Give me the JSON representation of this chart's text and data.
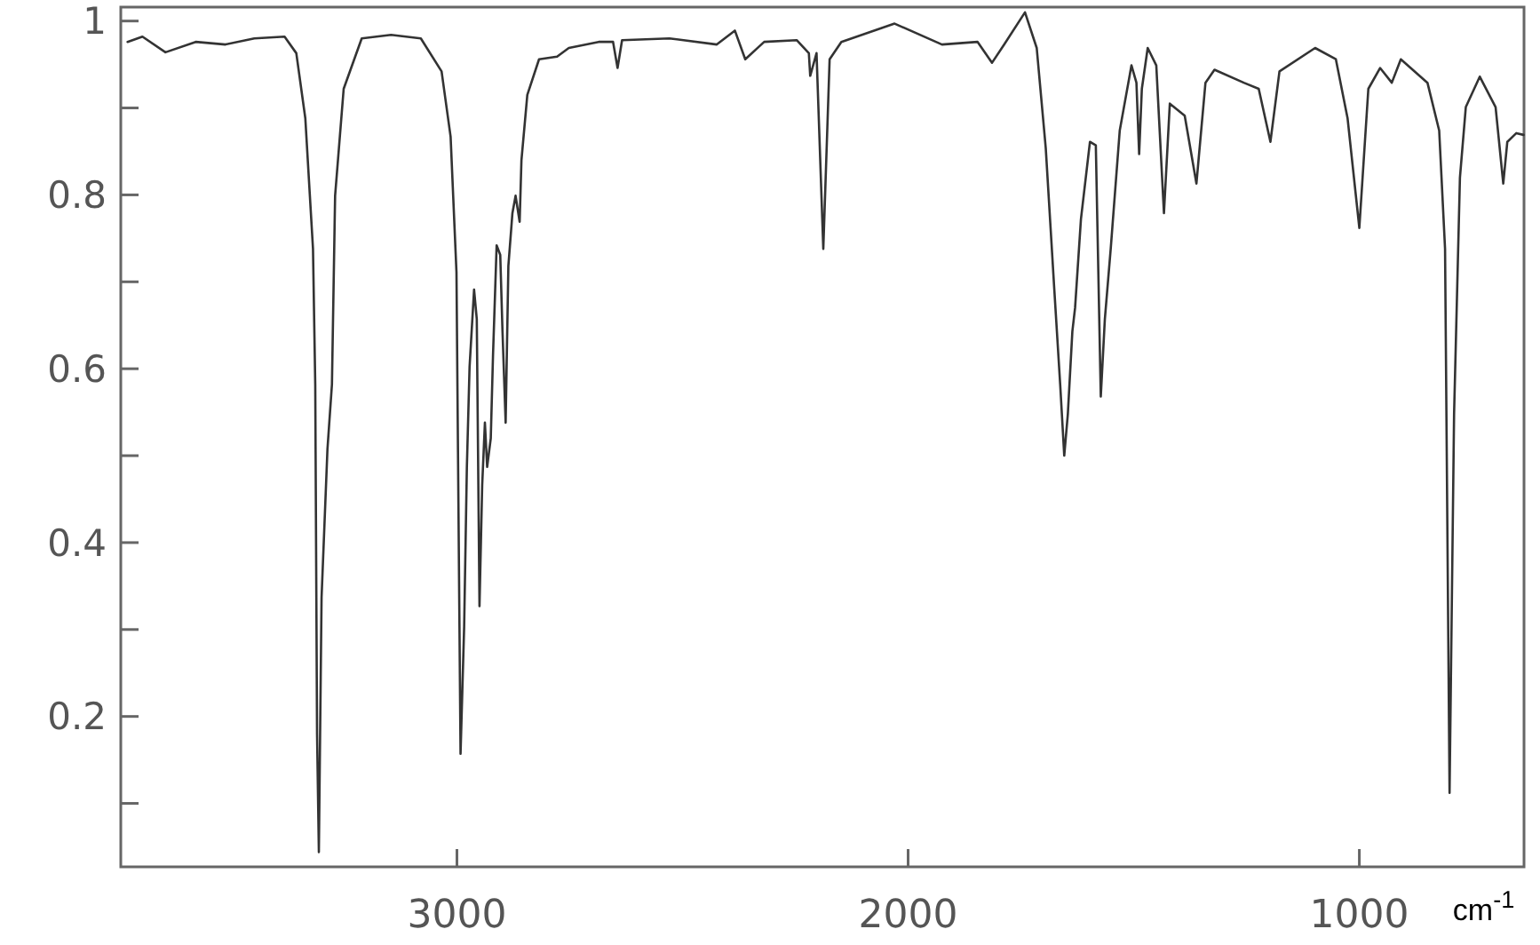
{
  "chart_data": {
    "type": "line",
    "xlabel": "cm$^{-1}$",
    "xlim": [
      3745,
      635
    ],
    "ylim": [
      0.027,
      1.016
    ],
    "xticks": [
      3000,
      2000,
      1000
    ],
    "yticks": [
      {
        "value": 0.1,
        "label": null
      },
      0.2,
      {
        "value": 0.3,
        "label": null
      },
      0.4,
      {
        "value": 0.5,
        "label": null
      },
      0.6,
      {
        "value": 0.7,
        "label": null
      },
      0.8,
      {
        "value": 0.9,
        "label": null
      },
      1
    ],
    "grid": false,
    "marker": "none",
    "line_style": "solid",
    "series": [
      {
        "color": "#333333",
        "x": [
          3730,
          3697,
          3646,
          3579,
          3513,
          3449,
          3382,
          3356,
          3336,
          3319,
          3314,
          3310,
          3306,
          3300,
          3287,
          3277,
          3270,
          3251,
          3211,
          3146,
          3080,
          3034,
          3014,
          3001,
          2992,
          2984,
          2978,
          2972,
          2962,
          2956,
          2950,
          2944,
          2938,
          2933,
          2925,
          2920,
          2912,
          2904,
          2899,
          2892,
          2886,
          2877,
          2870,
          2861,
          2857,
          2844,
          2818,
          2778,
          2752,
          2686,
          2654,
          2644,
          2634,
          2529,
          2424,
          2384,
          2361,
          2319,
          2247,
          2220,
          2217,
          2203,
          2188,
          2174,
          2148,
          2030,
          1925,
          1846,
          1814,
          1787,
          1741,
          1715,
          1695,
          1676,
          1663,
          1654,
          1646,
          1636,
          1630,
          1617,
          1597,
          1584,
          1573,
          1564,
          1551,
          1531,
          1505,
          1494,
          1488,
          1482,
          1469,
          1450,
          1433,
          1420,
          1387,
          1361,
          1341,
          1321,
          1256,
          1223,
          1197,
          1177,
          1098,
          1052,
          1026,
          1000,
          980,
          954,
          928,
          908,
          849,
          823,
          810,
          800,
          790,
          777,
          764,
          733,
          698,
          681,
          672,
          652,
          636
        ],
        "values": [
          0.976,
          0.982,
          0.964,
          0.976,
          0.973,
          0.98,
          0.982,
          0.963,
          0.888,
          0.738,
          0.582,
          0.18,
          0.044,
          0.337,
          0.507,
          0.582,
          0.799,
          0.922,
          0.98,
          0.984,
          0.98,
          0.942,
          0.867,
          0.711,
          0.157,
          0.303,
          0.486,
          0.602,
          0.691,
          0.657,
          0.327,
          0.466,
          0.538,
          0.487,
          0.52,
          0.616,
          0.742,
          0.731,
          0.643,
          0.538,
          0.718,
          0.779,
          0.799,
          0.769,
          0.84,
          0.915,
          0.956,
          0.959,
          0.969,
          0.976,
          0.976,
          0.946,
          0.978,
          0.98,
          0.973,
          0.989,
          0.956,
          0.976,
          0.978,
          0.963,
          0.937,
          0.963,
          0.738,
          0.956,
          0.976,
          0.997,
          0.973,
          0.976,
          0.952,
          0.973,
          1.01,
          0.969,
          0.854,
          0.691,
          0.582,
          0.5,
          0.548,
          0.643,
          0.67,
          0.772,
          0.861,
          0.857,
          0.568,
          0.657,
          0.738,
          0.874,
          0.949,
          0.929,
          0.847,
          0.922,
          0.969,
          0.949,
          0.779,
          0.905,
          0.891,
          0.813,
          0.929,
          0.944,
          0.929,
          0.922,
          0.861,
          0.942,
          0.969,
          0.956,
          0.888,
          0.762,
          0.922,
          0.946,
          0.929,
          0.956,
          0.929,
          0.874,
          0.738,
          0.112,
          0.548,
          0.82,
          0.901,
          0.936,
          0.901,
          0.813,
          0.861,
          0.871,
          0.869
        ]
      }
    ]
  }
}
